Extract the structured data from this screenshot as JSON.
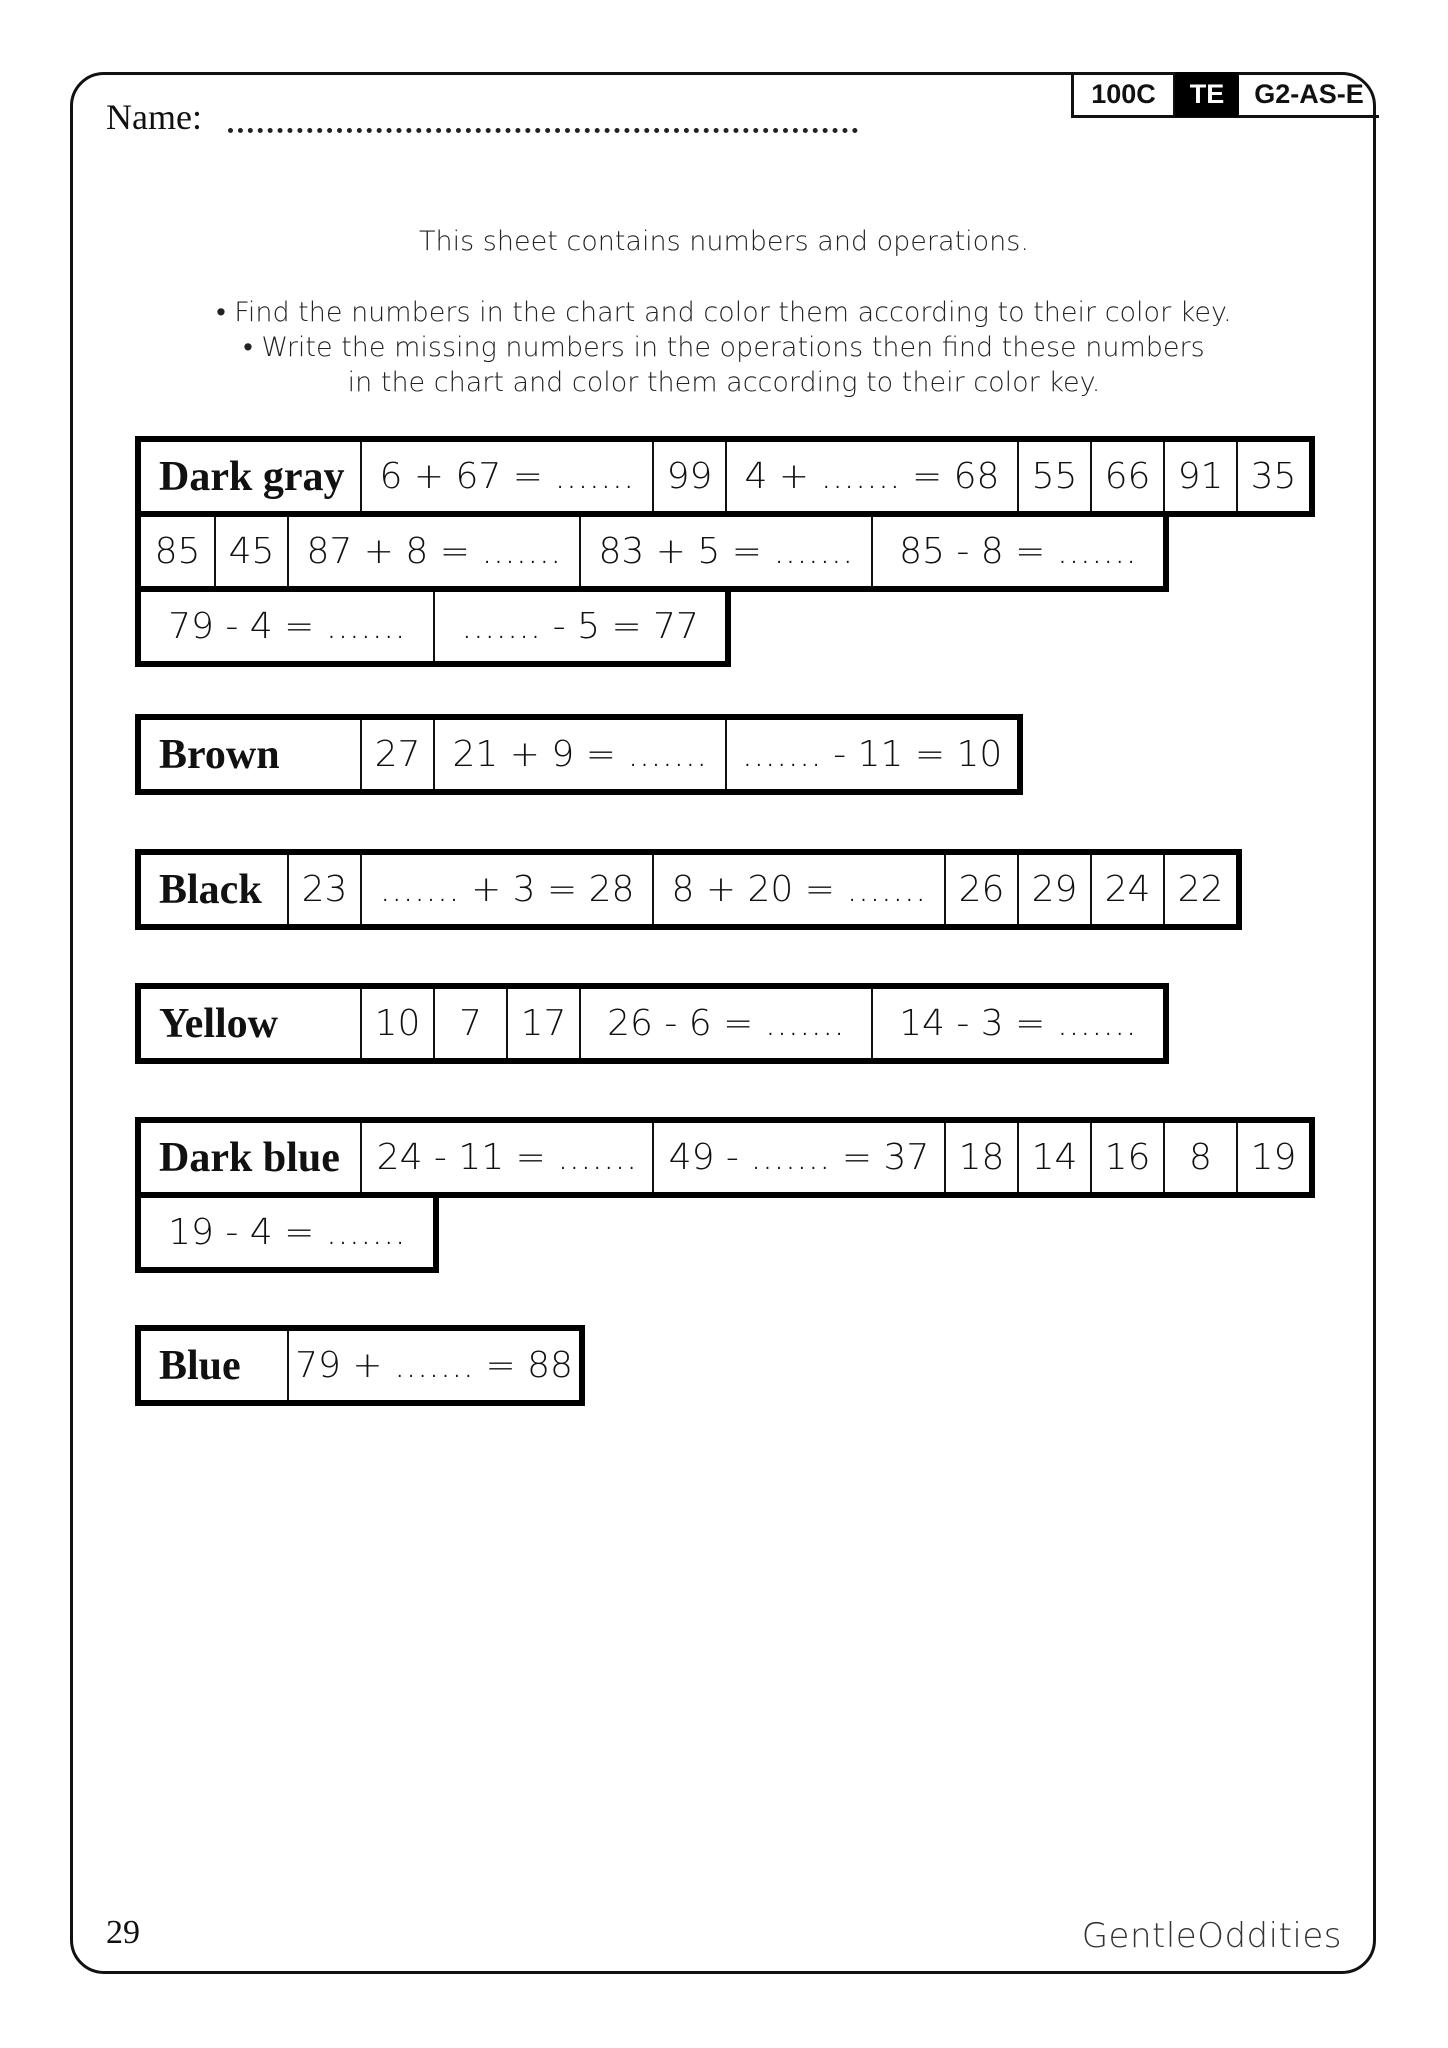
{
  "header": {
    "name_label": "Name:",
    "codes": [
      "100C",
      "TE",
      "G2-AS-E"
    ]
  },
  "instructions": [
    "This sheet contains numbers and operations.",
    "• Find the numbers in the chart and color them according to their color key.",
    "• Write the missing numbers in the operations then find these numbers",
    "in the chart and color them according to their color key."
  ],
  "tables": [
    {
      "label": "Dark gray",
      "rows": [
        [
          {
            "t": "Dark gray",
            "s": 3,
            "label": true
          },
          {
            "t": "6 + 67 = .......",
            "s": 4
          },
          {
            "t": "99",
            "s": 1
          },
          {
            "t": "4 + ....... = 68",
            "s": 4
          },
          {
            "t": "55",
            "s": 1
          },
          {
            "t": "66",
            "s": 1
          },
          {
            "t": "91",
            "s": 1
          },
          {
            "t": "35",
            "s": 1
          }
        ],
        [
          {
            "t": "85",
            "s": 1
          },
          {
            "t": "45",
            "s": 1
          },
          {
            "t": "87 + 8 = .......",
            "s": 4
          },
          {
            "t": "83 + 5 = .......",
            "s": 4
          },
          {
            "t": "85 - 8 = .......",
            "s": 4
          }
        ],
        [
          {
            "t": "79 - 4 = .......",
            "s": 4
          },
          {
            "t": "....... - 5 = 77",
            "s": 4
          }
        ]
      ]
    },
    {
      "label": "Brown",
      "rows": [
        [
          {
            "t": "Brown",
            "s": 3,
            "label": true
          },
          {
            "t": "27",
            "s": 1
          },
          {
            "t": "21 + 9 = .......",
            "s": 4
          },
          {
            "t": "....... - 11 = 10",
            "s": 4
          }
        ]
      ]
    },
    {
      "label": "Black",
      "rows": [
        [
          {
            "t": "Black",
            "s": 2,
            "label": true
          },
          {
            "t": "23",
            "s": 1
          },
          {
            "t": "....... + 3 = 28",
            "s": 4
          },
          {
            "t": "8 + 20 = .......",
            "s": 4
          },
          {
            "t": "26",
            "s": 1
          },
          {
            "t": "29",
            "s": 1
          },
          {
            "t": "24",
            "s": 1
          },
          {
            "t": "22",
            "s": 1
          }
        ]
      ]
    },
    {
      "label": "Yellow",
      "rows": [
        [
          {
            "t": "Yellow",
            "s": 3,
            "label": true
          },
          {
            "t": "10",
            "s": 1
          },
          {
            "t": "7",
            "s": 1
          },
          {
            "t": "17",
            "s": 1
          },
          {
            "t": "26 - 6 = .......",
            "s": 4
          },
          {
            "t": "14 - 3 = .......",
            "s": 4
          }
        ]
      ]
    },
    {
      "label": "Dark blue",
      "rows": [
        [
          {
            "t": "Dark blue",
            "s": 3,
            "label": true
          },
          {
            "t": "24 - 11 = .......",
            "s": 4
          },
          {
            "t": "49 - ....... = 37",
            "s": 4
          },
          {
            "t": "18",
            "s": 1
          },
          {
            "t": "14",
            "s": 1
          },
          {
            "t": "16",
            "s": 1
          },
          {
            "t": "8",
            "s": 1
          },
          {
            "t": "19",
            "s": 1
          }
        ],
        [
          {
            "t": "19 - 4 = .......",
            "s": 4
          }
        ]
      ]
    },
    {
      "label": "Blue",
      "rows": [
        [
          {
            "t": "Blue",
            "s": 2,
            "label": true
          },
          {
            "t": "79 + ....... = 88",
            "s": 4
          }
        ]
      ]
    }
  ],
  "footer": {
    "page_number": "29",
    "logo": "GentleOddities"
  }
}
